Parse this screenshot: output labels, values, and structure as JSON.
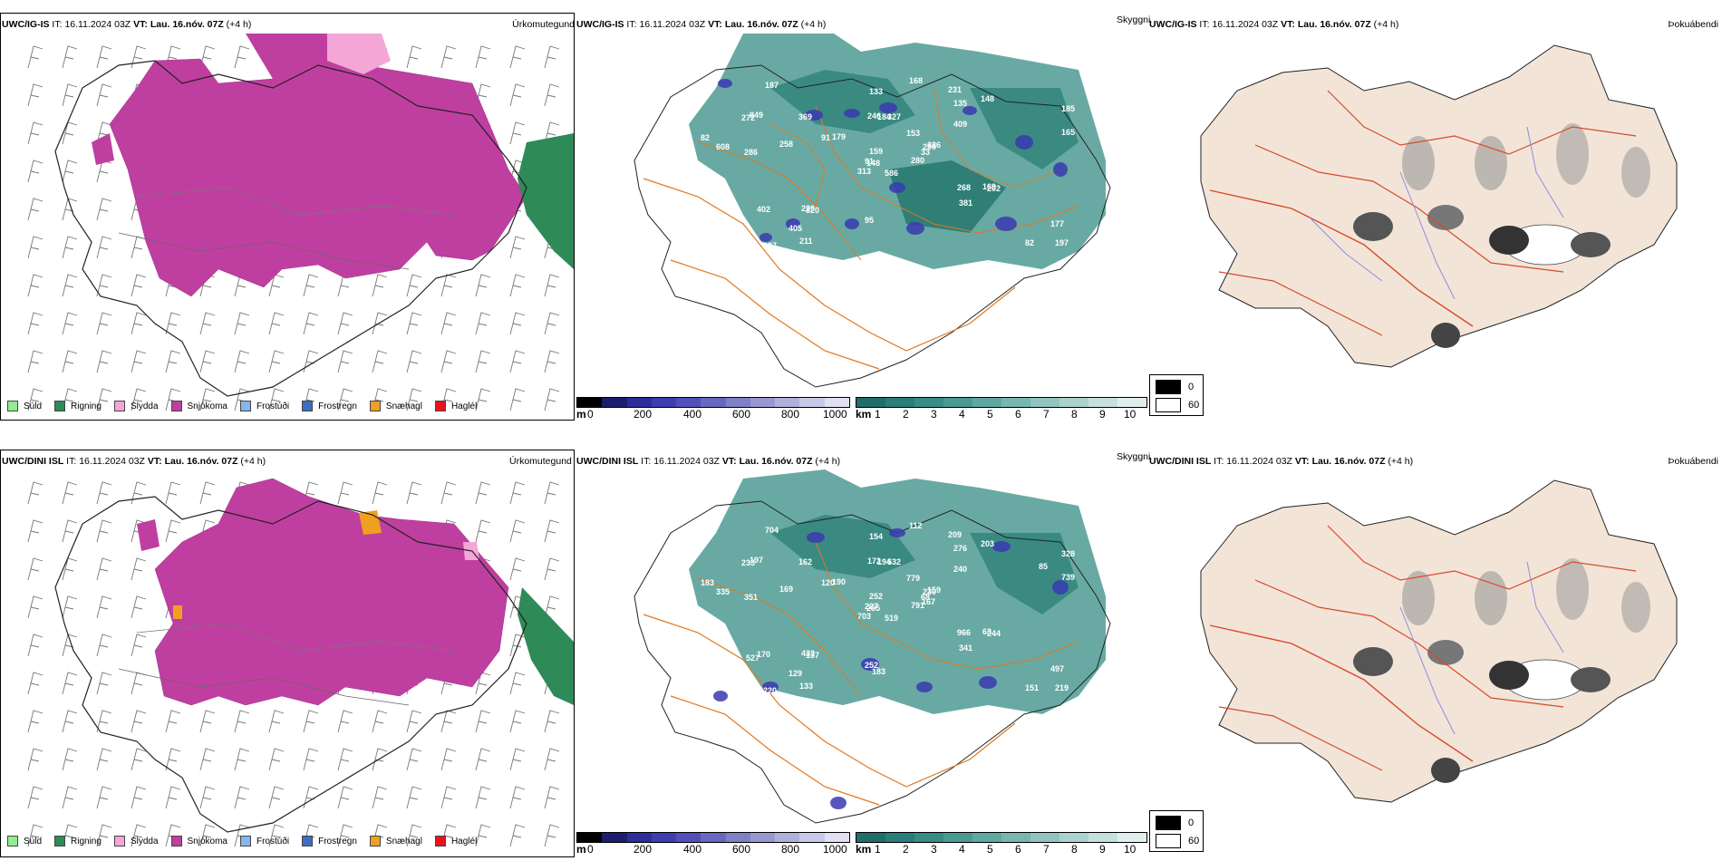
{
  "rows": [
    {
      "model": "UWC/IG-IS",
      "it_label": "IT:",
      "it_value": "16.11.2024 03Z",
      "vt_label": "VT:",
      "vt_value": "Lau. 16.nóv. 07Z",
      "lead": "(+4 h)"
    },
    {
      "model": "UWC/DINI ISL",
      "it_label": "IT:",
      "it_value": "16.11.2024 03Z",
      "vt_label": "VT:",
      "vt_value": "Lau. 16.nóv. 07Z",
      "lead": "(+4 h)"
    }
  ],
  "panel_titles": {
    "precip": "Úrkomutegund",
    "cloud": "Skyggni",
    "fog": "Þokuábendi"
  },
  "precip_legend": [
    {
      "label": "Súld",
      "color": "#90ee90"
    },
    {
      "label": "Rigning",
      "color": "#2e8b57"
    },
    {
      "label": "Slydda",
      "color": "#f4a6d7"
    },
    {
      "label": "Snjókoma",
      "color": "#bf3fa0"
    },
    {
      "label": "Frostúði",
      "color": "#87b6ea"
    },
    {
      "label": "Frostregn",
      "color": "#3a6fc4"
    },
    {
      "label": "Snæhagl",
      "color": "#f0a020"
    },
    {
      "label": "Haglél",
      "color": "#e8141c"
    }
  ],
  "cloud_base_bar": {
    "unit": "m",
    "ticks": [
      "0",
      "200",
      "400",
      "600",
      "800",
      "1000"
    ],
    "colors": [
      "#000000",
      "#1d1d6e",
      "#2c2c9a",
      "#3d3db0",
      "#5050b8",
      "#6868c0",
      "#8080c8",
      "#9898d0",
      "#b0b0dc",
      "#c8c8e8",
      "#e0e0f2"
    ]
  },
  "visibility_bar": {
    "unit": "km",
    "ticks": [
      "1",
      "2",
      "3",
      "4",
      "5",
      "6",
      "7",
      "8",
      "9",
      "10"
    ],
    "colors": [
      "#1f6e6a",
      "#2a7d78",
      "#378c86",
      "#4a9a94",
      "#60a8a2",
      "#78b6b0",
      "#92c4bf",
      "#acd2ce",
      "#c6e0dd",
      "#e0efed"
    ]
  },
  "fog_legend": [
    {
      "label": "0",
      "color": "#000000"
    },
    {
      "label": "60",
      "color": "#ffffff"
    }
  ],
  "cloud_labels_top": [
    "586",
    "272",
    "148",
    "219",
    "299",
    "320",
    "231",
    "327",
    "135",
    "280",
    "187",
    "197",
    "286",
    "185",
    "313",
    "409",
    "197",
    "246",
    "153",
    "402",
    "179",
    "270",
    "405",
    "184",
    "226",
    "202",
    "849",
    "133",
    "608",
    "268",
    "165",
    "91",
    "95",
    "159",
    "369",
    "148",
    "220",
    "82",
    "177",
    "169",
    "168",
    "91",
    "258",
    "381",
    "211",
    "82",
    "33"
  ],
  "cloud_labels_bottom": [
    "519",
    "233",
    "255",
    "220",
    "230",
    "137",
    "209",
    "532",
    "276",
    "791",
    "704",
    "219",
    "351",
    "328",
    "703",
    "240",
    "220",
    "172",
    "779",
    "170",
    "190",
    "193",
    "129",
    "194",
    "159",
    "244",
    "197",
    "154",
    "335",
    "966",
    "739",
    "227",
    "252",
    "252",
    "162",
    "203",
    "433",
    "151",
    "497",
    "63",
    "112",
    "120",
    "169",
    "341",
    "133",
    "183",
    "68",
    "179",
    "183",
    "167",
    "527",
    "85"
  ]
}
